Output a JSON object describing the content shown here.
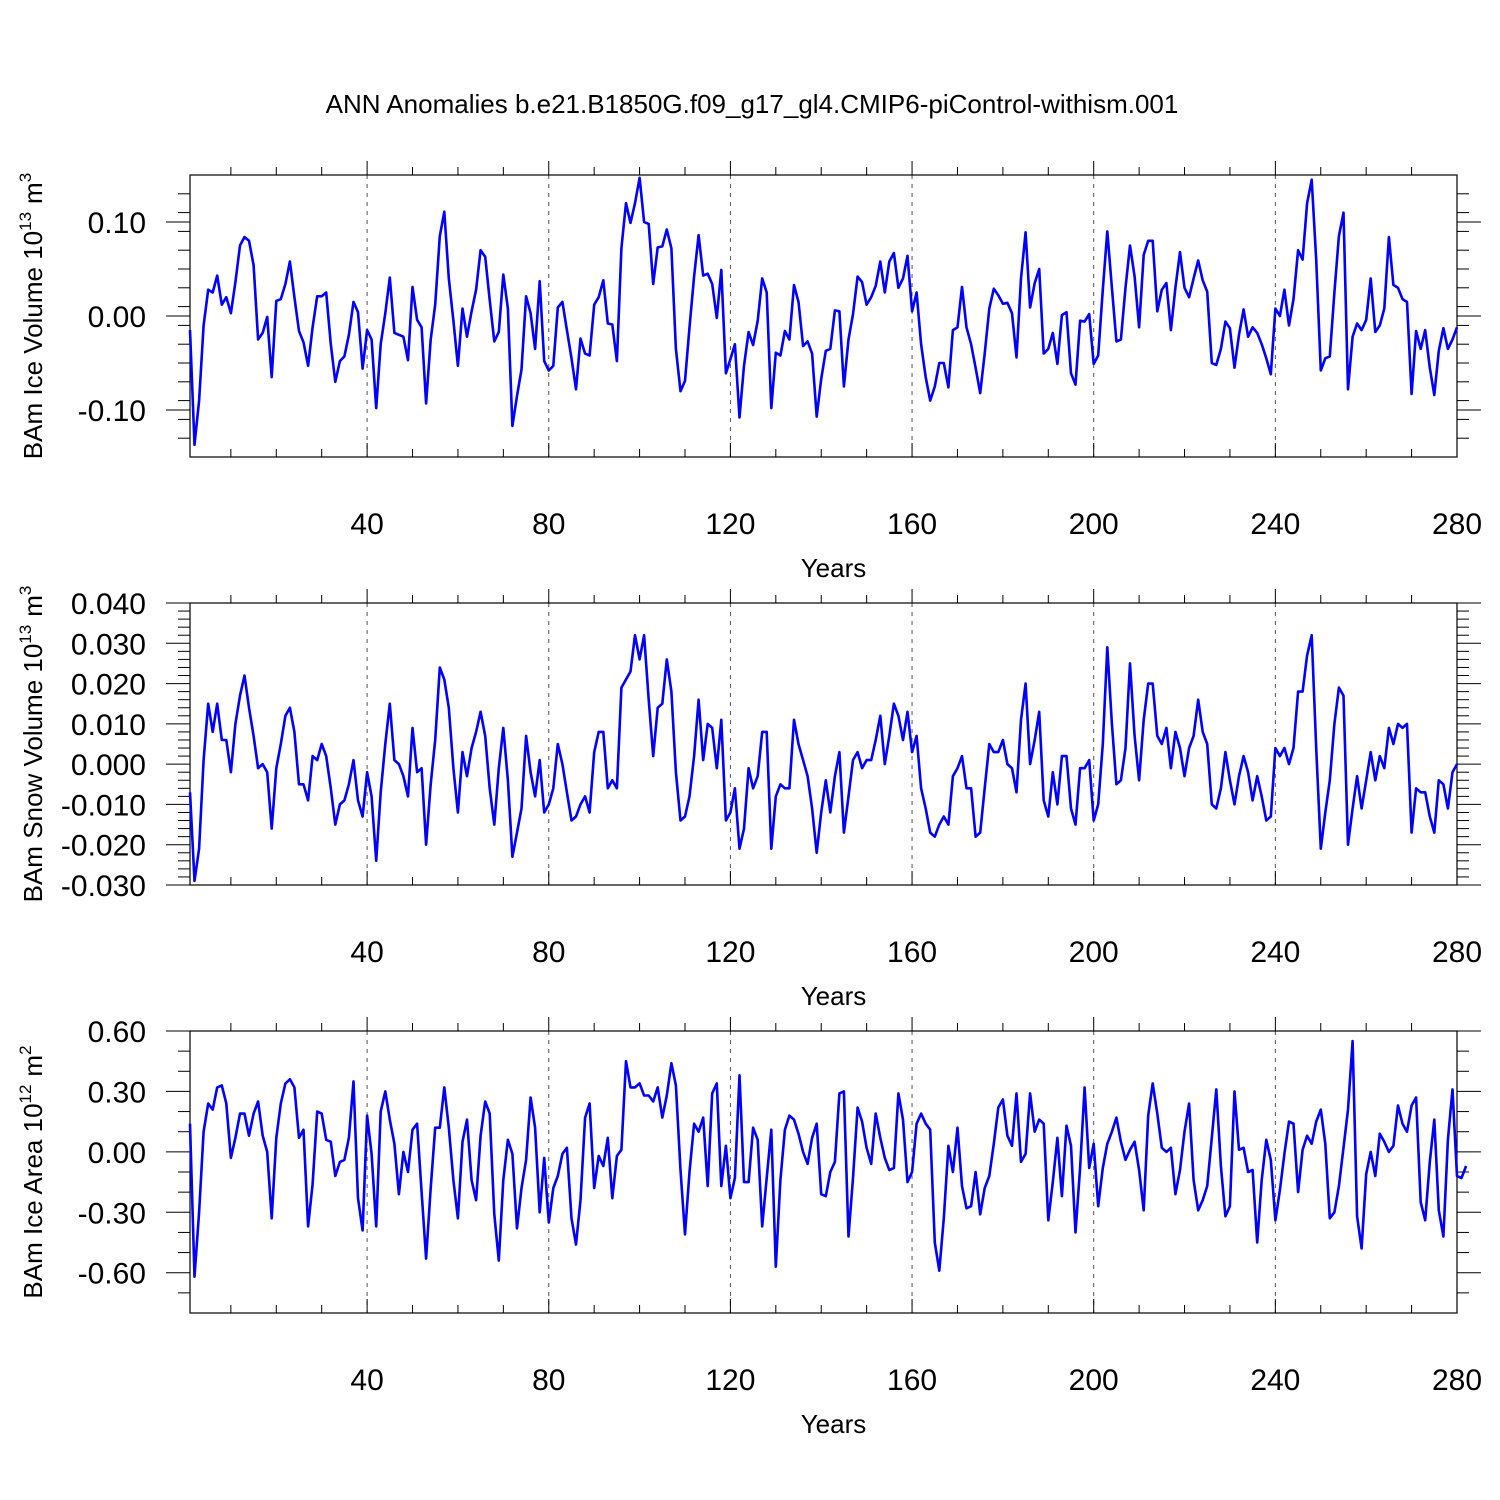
{
  "figure": {
    "title": "ANN Anomalies b.e21.B1850G.f09_g17_gl4.CMIP6-piControl-withism.001",
    "line_color": "#0000ff"
  },
  "chart_data": [
    {
      "type": "line",
      "xlabel": "Years",
      "ylabel_main": "BAm Ice Volume 10",
      "ylabel_exp": "13",
      "ylabel_unit": "m",
      "ylabel_unit_exp": "3",
      "xlim": [
        1,
        280
      ],
      "ylim": [
        -0.15,
        0.15
      ],
      "x_ticks": [
        40,
        80,
        120,
        160,
        200,
        240,
        280
      ],
      "x_tick_labels": [
        "40",
        "80",
        "120",
        "160",
        "200",
        "240",
        "280"
      ],
      "y_ticks": [
        -0.1,
        0.0,
        0.1
      ],
      "y_tick_labels": [
        "-0.10",
        "0.00",
        "0.10"
      ],
      "y_minor_step": 0.02,
      "x_minor_step": 10,
      "grid": "vertical dashed at major x ticks",
      "legend": "none",
      "series": [
        {
          "x_start": 1,
          "x_step": 1,
          "values": [
            -0.015,
            -0.137,
            -0.09,
            -0.01,
            0.028,
            0.025,
            0.043,
            0.012,
            0.02,
            0.003,
            0.036,
            0.075,
            0.084,
            0.08,
            0.054,
            -0.025,
            -0.018,
            -0.001,
            -0.065,
            0.016,
            0.018,
            0.034,
            0.058,
            0.02,
            -0.016,
            -0.028,
            -0.053,
            -0.012,
            0.021,
            0.021,
            0.025,
            -0.03,
            -0.07,
            -0.048,
            -0.043,
            -0.02,
            0.015,
            0.004,
            -0.056,
            -0.015,
            -0.025,
            -0.098,
            -0.03,
            0.003,
            0.041,
            -0.018,
            -0.02,
            -0.022,
            -0.047,
            0.031,
            -0.004,
            -0.012,
            -0.093,
            -0.025,
            0.012,
            0.085,
            0.111,
            0.04,
            -0.005,
            -0.053,
            0.008,
            -0.022,
            0.005,
            0.028,
            0.07,
            0.063,
            0.017,
            -0.027,
            -0.017,
            0.044,
            0.008,
            -0.117,
            -0.085,
            -0.057,
            0.021,
            0.003,
            -0.035,
            0.037,
            -0.048,
            -0.058,
            -0.053,
            0.009,
            0.015,
            -0.015,
            -0.045,
            -0.078,
            -0.024,
            -0.04,
            -0.042,
            0.012,
            0.02,
            0.038,
            -0.008,
            -0.009,
            -0.048,
            0.072,
            0.12,
            0.099,
            0.12,
            0.147,
            0.1,
            0.098,
            0.034,
            0.073,
            0.074,
            0.092,
            0.072,
            -0.035,
            -0.08,
            -0.069,
            -0.012,
            0.042,
            0.086,
            0.043,
            0.045,
            0.034,
            -0.002,
            0.049,
            -0.061,
            -0.046,
            -0.03,
            -0.108,
            -0.053,
            -0.017,
            -0.031,
            -0.005,
            0.04,
            0.025,
            -0.098,
            -0.039,
            -0.042,
            -0.016,
            -0.025,
            0.033,
            0.015,
            -0.032,
            -0.027,
            -0.04,
            -0.107,
            -0.067,
            -0.037,
            -0.035,
            0.006,
            0.005,
            -0.075,
            -0.025,
            0.002,
            0.042,
            0.036,
            0.012,
            0.02,
            0.032,
            0.058,
            0.025,
            0.058,
            0.067,
            0.03,
            0.04,
            0.064,
            0.005,
            0.025,
            -0.03,
            -0.065,
            -0.09,
            -0.075,
            -0.05,
            -0.05,
            -0.076,
            -0.015,
            -0.012,
            0.031,
            -0.012,
            -0.03,
            -0.055,
            -0.082,
            -0.04,
            0.008,
            0.029,
            0.022,
            0.013,
            0.014,
            0.003,
            -0.044,
            0.04,
            0.089,
            0.009,
            0.035,
            0.05,
            -0.04,
            -0.035,
            -0.018,
            -0.051,
            0.001,
            0.004,
            -0.061,
            -0.073,
            -0.005,
            -0.006,
            0.002,
            -0.051,
            -0.042,
            0.028,
            0.09,
            0.03,
            -0.027,
            -0.025,
            0.03,
            0.075,
            0.042,
            -0.012,
            0.065,
            0.08,
            0.08,
            0.005,
            0.028,
            0.035,
            -0.015,
            0.03,
            0.068,
            0.03,
            0.02,
            0.04,
            0.059,
            0.038,
            0.026,
            -0.05,
            -0.052,
            -0.035,
            -0.006,
            -0.013,
            -0.055,
            -0.02,
            0.007,
            -0.022,
            -0.012,
            -0.018,
            -0.03,
            -0.045,
            -0.062,
            0.008,
            0.0,
            0.028,
            -0.01,
            0.018,
            0.07,
            0.06,
            0.12,
            0.145,
            0.06,
            -0.058,
            -0.045,
            -0.043,
            0.025,
            0.085,
            0.11,
            -0.078,
            -0.022,
            -0.008,
            -0.015,
            -0.004,
            0.04,
            -0.017,
            -0.01,
            0.008,
            0.084,
            0.033,
            0.03,
            0.018,
            0.015,
            -0.083,
            -0.016,
            -0.035,
            -0.015,
            -0.055,
            -0.084,
            -0.037,
            -0.013,
            -0.035,
            -0.025,
            -0.012
          ]
        }
      ]
    },
    {
      "type": "line",
      "xlabel": "Years",
      "ylabel_main": "BAm Snow Volume 10",
      "ylabel_exp": "13",
      "ylabel_unit": "m",
      "ylabel_unit_exp": "3",
      "xlim": [
        1,
        280
      ],
      "ylim": [
        -0.03,
        0.04
      ],
      "x_ticks": [
        40,
        80,
        120,
        160,
        200,
        240,
        280
      ],
      "x_tick_labels": [
        "40",
        "80",
        "120",
        "160",
        "200",
        "240",
        "280"
      ],
      "y_ticks": [
        -0.03,
        -0.02,
        -0.01,
        0.0,
        0.01,
        0.02,
        0.03,
        0.04
      ],
      "y_tick_labels": [
        "-0.030",
        "-0.020",
        "-0.010",
        "0.000",
        "0.010",
        "0.020",
        "0.030",
        "0.040"
      ],
      "y_minor_step": 0.002,
      "x_minor_step": 10,
      "grid": "vertical dashed at major x ticks",
      "legend": "none",
      "series": [
        {
          "x_start": 1,
          "x_step": 1,
          "values": [
            -0.007,
            -0.029,
            -0.021,
            0.001,
            0.015,
            0.008,
            0.015,
            0.006,
            0.006,
            -0.002,
            0.01,
            0.017,
            0.022,
            0.014,
            0.007,
            -0.001,
            0.0,
            -0.002,
            -0.016,
            -0.001,
            0.005,
            0.012,
            0.014,
            0.008,
            -0.005,
            -0.005,
            -0.009,
            0.002,
            0.001,
            0.005,
            0.002,
            -0.006,
            -0.015,
            -0.01,
            -0.009,
            -0.005,
            0.001,
            -0.009,
            -0.013,
            -0.002,
            -0.008,
            -0.024,
            -0.007,
            0.005,
            0.015,
            0.001,
            0.0,
            -0.003,
            -0.008,
            0.009,
            -0.002,
            -0.001,
            -0.02,
            -0.005,
            0.006,
            0.024,
            0.021,
            0.014,
            -0.001,
            -0.012,
            0.003,
            -0.003,
            0.004,
            0.008,
            0.013,
            0.007,
            -0.006,
            -0.015,
            -0.001,
            0.009,
            -0.004,
            -0.023,
            -0.017,
            -0.011,
            0.007,
            -0.002,
            -0.008,
            0.001,
            -0.012,
            -0.01,
            -0.006,
            0.005,
            0.0,
            -0.007,
            -0.014,
            -0.013,
            -0.01,
            -0.008,
            -0.012,
            0.003,
            0.008,
            0.008,
            -0.006,
            -0.004,
            -0.006,
            0.019,
            0.021,
            0.023,
            0.032,
            0.026,
            0.032,
            0.016,
            0.002,
            0.014,
            0.015,
            0.026,
            0.018,
            -0.002,
            -0.014,
            -0.013,
            -0.008,
            0.002,
            0.016,
            0.001,
            0.01,
            0.009,
            -0.001,
            0.011,
            -0.014,
            -0.012,
            -0.006,
            -0.021,
            -0.016,
            -0.001,
            -0.006,
            -0.003,
            0.008,
            0.008,
            -0.021,
            -0.008,
            -0.005,
            -0.006,
            -0.006,
            0.011,
            0.005,
            0.001,
            -0.003,
            -0.011,
            -0.022,
            -0.012,
            -0.004,
            -0.012,
            -0.003,
            0.003,
            -0.017,
            -0.008,
            0.001,
            0.003,
            -0.001,
            0.001,
            0.001,
            0.006,
            0.012,
            0.0,
            0.007,
            0.015,
            0.012,
            0.006,
            0.013,
            0.003,
            0.007,
            -0.006,
            -0.011,
            -0.017,
            -0.018,
            -0.015,
            -0.013,
            -0.015,
            -0.003,
            -0.001,
            0.002,
            -0.006,
            -0.006,
            -0.018,
            -0.017,
            -0.006,
            0.005,
            0.003,
            0.003,
            0.006,
            0.0,
            -0.001,
            -0.007,
            0.011,
            0.02,
            0.0,
            0.006,
            0.013,
            -0.009,
            -0.013,
            -0.002,
            -0.01,
            0.002,
            0.002,
            -0.011,
            -0.015,
            -0.001,
            -0.001,
            0.001,
            -0.014,
            -0.01,
            0.005,
            0.029,
            0.01,
            -0.005,
            -0.004,
            0.004,
            0.025,
            0.007,
            -0.004,
            0.011,
            0.02,
            0.02,
            0.007,
            0.005,
            0.009,
            -0.001,
            0.008,
            0.004,
            -0.003,
            0.004,
            0.007,
            0.016,
            0.008,
            0.005,
            -0.01,
            -0.011,
            -0.006,
            0.003,
            -0.004,
            -0.01,
            -0.003,
            0.002,
            -0.002,
            -0.009,
            -0.003,
            -0.008,
            -0.014,
            -0.013,
            0.004,
            0.002,
            0.004,
            0.0,
            0.004,
            0.018,
            0.018,
            0.027,
            0.032,
            0.004,
            -0.021,
            -0.012,
            -0.004,
            0.01,
            0.019,
            0.017,
            -0.02,
            -0.011,
            -0.003,
            -0.011,
            -0.004,
            0.003,
            -0.004,
            0.002,
            -0.001,
            0.009,
            0.005,
            0.01,
            0.009,
            0.01,
            -0.017,
            -0.006,
            -0.007,
            -0.007,
            -0.013,
            -0.017,
            -0.004,
            -0.005,
            -0.011,
            -0.002,
            0.0
          ]
        }
      ]
    },
    {
      "type": "line",
      "xlabel": "Years",
      "ylabel_main": "BAm Ice Area 10",
      "ylabel_exp": "12",
      "ylabel_unit": "m",
      "ylabel_unit_exp": "2",
      "xlim": [
        1,
        280
      ],
      "ylim": [
        -0.8,
        0.6
      ],
      "x_ticks": [
        40,
        80,
        120,
        160,
        200,
        240,
        280
      ],
      "x_tick_labels": [
        "40",
        "80",
        "120",
        "160",
        "200",
        "240",
        "280"
      ],
      "y_ticks": [
        -0.6,
        -0.3,
        0.0,
        0.3,
        0.6
      ],
      "y_tick_labels": [
        "-0.60",
        "-0.30",
        "0.00",
        "0.30",
        "0.60"
      ],
      "y_minor_step": 0.1,
      "x_minor_step": 10,
      "grid": "vertical dashed at major x ticks",
      "legend": "none",
      "series": [
        {
          "x_start": 1,
          "x_step": 1,
          "values": [
            0.14,
            -0.62,
            -0.3,
            0.1,
            0.24,
            0.21,
            0.32,
            0.33,
            0.24,
            -0.03,
            0.07,
            0.19,
            0.19,
            0.08,
            0.19,
            0.25,
            0.08,
            0.0,
            -0.33,
            0.07,
            0.24,
            0.34,
            0.36,
            0.32,
            0.07,
            0.11,
            -0.37,
            -0.16,
            0.2,
            0.19,
            0.06,
            0.05,
            -0.12,
            -0.05,
            -0.04,
            0.07,
            0.35,
            -0.23,
            -0.39,
            0.18,
            -0.01,
            -0.37,
            0.2,
            0.3,
            0.16,
            0.04,
            -0.21,
            0.0,
            -0.1,
            0.11,
            0.14,
            -0.2,
            -0.53,
            -0.18,
            0.12,
            0.12,
            0.32,
            0.12,
            -0.14,
            -0.33,
            0.05,
            0.16,
            -0.14,
            -0.24,
            0.08,
            0.25,
            0.19,
            -0.31,
            -0.54,
            -0.14,
            0.06,
            -0.01,
            -0.38,
            -0.18,
            -0.04,
            0.27,
            0.12,
            -0.3,
            -0.03,
            -0.35,
            -0.18,
            -0.12,
            -0.01,
            0.02,
            -0.33,
            -0.46,
            -0.24,
            0.17,
            0.24,
            -0.18,
            -0.02,
            -0.07,
            0.07,
            -0.23,
            -0.02,
            0.01,
            0.45,
            0.32,
            0.32,
            0.34,
            0.28,
            0.28,
            0.25,
            0.32,
            0.17,
            0.28,
            0.44,
            0.33,
            -0.09,
            -0.41,
            -0.1,
            0.14,
            0.1,
            0.17,
            -0.17,
            0.29,
            0.34,
            -0.17,
            0.03,
            -0.23,
            -0.13,
            0.38,
            -0.15,
            -0.15,
            0.12,
            0.06,
            -0.37,
            -0.13,
            0.11,
            -0.57,
            -0.14,
            0.11,
            0.18,
            0.16,
            0.09,
            0.0,
            -0.06,
            0.07,
            0.14,
            -0.21,
            -0.22,
            -0.1,
            -0.05,
            0.29,
            0.3,
            -0.42,
            -0.13,
            0.22,
            0.15,
            0.02,
            -0.06,
            0.19,
            0.07,
            -0.03,
            -0.09,
            -0.08,
            0.29,
            0.16,
            -0.15,
            -0.1,
            0.14,
            0.19,
            0.14,
            0.11,
            -0.45,
            -0.59,
            -0.33,
            0.03,
            -0.1,
            0.12,
            -0.17,
            -0.28,
            -0.27,
            -0.1,
            -0.31,
            -0.18,
            -0.12,
            0.04,
            0.22,
            0.26,
            0.08,
            0.03,
            0.29,
            -0.05,
            -0.01,
            0.29,
            0.1,
            0.16,
            0.14,
            -0.34,
            -0.15,
            0.07,
            -0.22,
            0.13,
            0.03,
            -0.4,
            -0.08,
            0.32,
            -0.08,
            0.04,
            -0.27,
            -0.08,
            0.04,
            0.1,
            0.17,
            0.05,
            -0.04,
            0.01,
            0.05,
            -0.09,
            -0.29,
            0.18,
            0.34,
            0.19,
            0.02,
            0.0,
            0.02,
            -0.21,
            -0.09,
            0.1,
            0.24,
            -0.14,
            -0.29,
            -0.24,
            -0.17,
            0.07,
            0.31,
            -0.07,
            -0.32,
            -0.27,
            0.3,
            0.01,
            0.02,
            -0.1,
            -0.09,
            -0.45,
            -0.14,
            0.06,
            -0.04,
            -0.34,
            -0.19,
            -0.01,
            0.15,
            0.14,
            -0.2,
            0.01,
            0.08,
            0.04,
            0.15,
            0.21,
            0.04,
            -0.33,
            -0.3,
            -0.17,
            0.02,
            0.21,
            0.55,
            -0.32,
            -0.48,
            -0.11,
            0.0,
            -0.12,
            0.09,
            0.05,
            0.0,
            0.03,
            0.23,
            0.14,
            0.1,
            0.23,
            0.27,
            -0.25,
            -0.34,
            -0.05,
            0.16,
            -0.29,
            -0.42,
            0.06,
            0.31,
            -0.12,
            -0.13,
            -0.07
          ]
        }
      ]
    }
  ]
}
